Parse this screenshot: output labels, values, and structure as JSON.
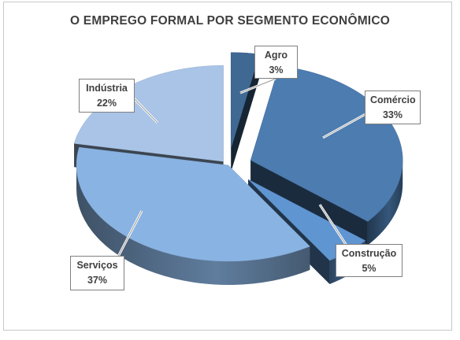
{
  "chart_data": {
    "type": "pie",
    "title": "O EMPREGO FORMAL POR SEGMENTO ECONÔMICO",
    "categories": [
      "Agro",
      "Comércio",
      "Construção",
      "Serviços",
      "Indústria"
    ],
    "values": [
      3,
      33,
      5,
      37,
      22
    ],
    "labels": [
      "3%",
      "33%",
      "5%",
      "37%",
      "22%"
    ],
    "unit": "%",
    "style": "3d exploded",
    "colors": {
      "Agro": "#3f6893",
      "Comércio": "#4c7cb0",
      "Construção": "#5f95d1",
      "Serviços": "#89b3e2",
      "Indústria": "#a9c4e6"
    },
    "legend": "none"
  }
}
